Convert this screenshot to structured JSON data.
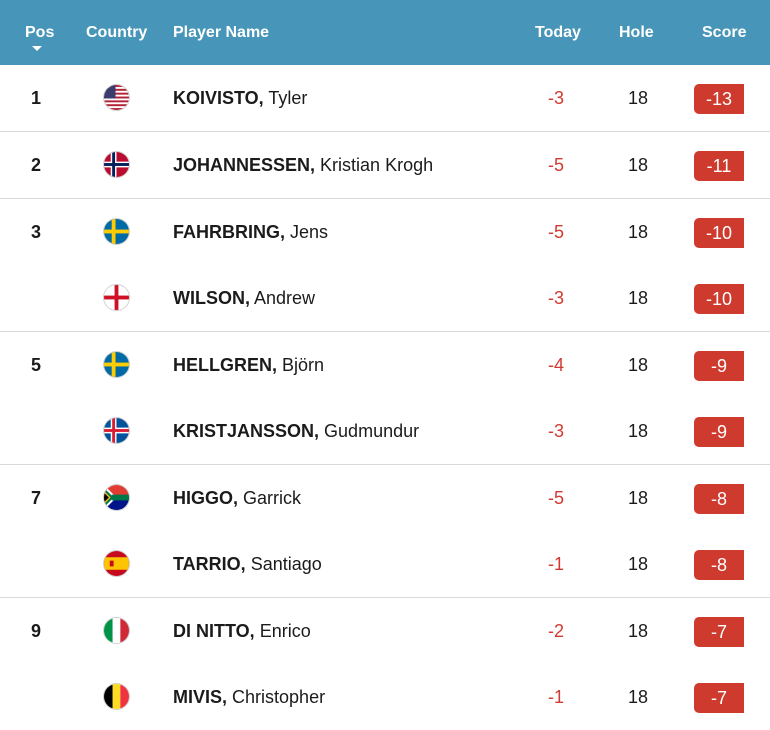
{
  "header": {
    "pos": "Pos",
    "country": "Country",
    "player_name": "Player Name",
    "today": "Today",
    "hole": "Hole",
    "score": "Score"
  },
  "rows": [
    {
      "pos": "1",
      "flag": "usa-flag-icon",
      "last": "KOIVISTO,",
      "first": "Tyler",
      "today": "-3",
      "hole": "18",
      "score": "-13"
    },
    {
      "pos": "2",
      "flag": "norway-flag-icon",
      "last": "JOHANNESSEN,",
      "first": "Kristian Krogh",
      "today": "-5",
      "hole": "18",
      "score": "-11"
    },
    {
      "pos": "3",
      "flag": "sweden-flag-icon",
      "last": "FAHRBRING,",
      "first": "Jens",
      "today": "-5",
      "hole": "18",
      "score": "-10"
    },
    {
      "pos": "",
      "flag": "england-flag-icon",
      "last": "WILSON,",
      "first": "Andrew",
      "today": "-3",
      "hole": "18",
      "score": "-10"
    },
    {
      "pos": "5",
      "flag": "sweden-flag-icon",
      "last": "HELLGREN,",
      "first": "Björn",
      "today": "-4",
      "hole": "18",
      "score": "-9"
    },
    {
      "pos": "",
      "flag": "iceland-flag-icon",
      "last": "KRISTJANSSON,",
      "first": "Gudmundur",
      "today": "-3",
      "hole": "18",
      "score": "-9"
    },
    {
      "pos": "7",
      "flag": "south-africa-flag-icon",
      "last": "HIGGO,",
      "first": "Garrick",
      "today": "-5",
      "hole": "18",
      "score": "-8"
    },
    {
      "pos": "",
      "flag": "spain-flag-icon",
      "last": "TARRIO,",
      "first": "Santiago",
      "today": "-1",
      "hole": "18",
      "score": "-8"
    },
    {
      "pos": "9",
      "flag": "italy-flag-icon",
      "last": "DI NITTO,",
      "first": "Enrico",
      "today": "-2",
      "hole": "18",
      "score": "-7"
    },
    {
      "pos": "",
      "flag": "belgium-flag-icon",
      "last": "MIVIS,",
      "first": "Christopher",
      "today": "-1",
      "hole": "18",
      "score": "-7"
    }
  ],
  "colors": {
    "header_bg": "#4795b8",
    "score_badge": "#cf3a2e",
    "today_text": "#d13a2f"
  }
}
